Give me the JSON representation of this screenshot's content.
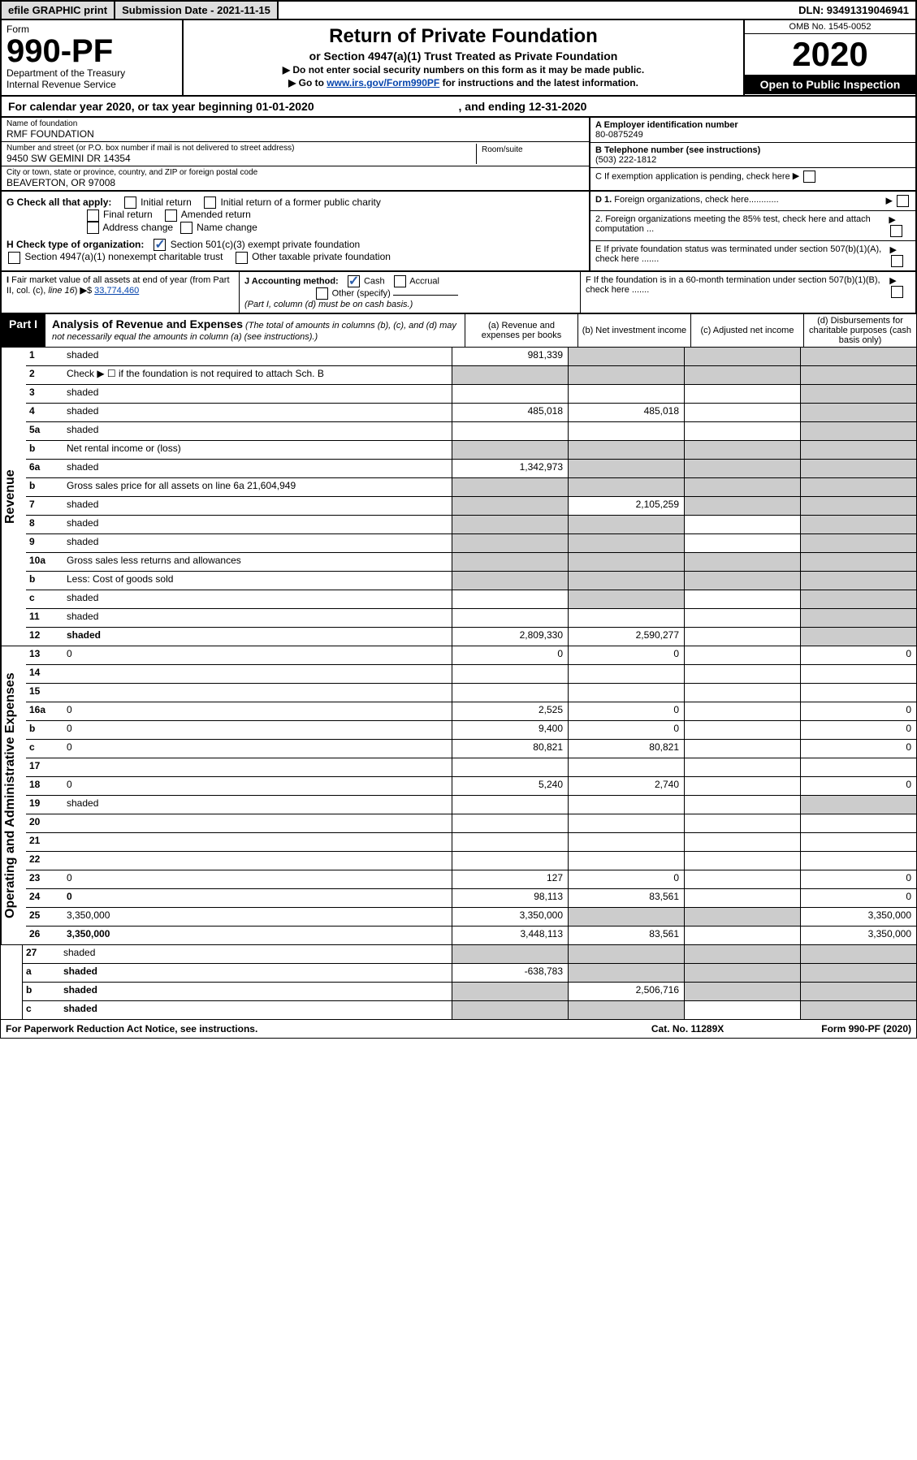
{
  "topbar": {
    "efile": "efile GRAPHIC print",
    "sub": "Submission Date - 2021-11-15",
    "dln": "DLN: 93491319046941"
  },
  "header": {
    "form_label": "Form",
    "form_num": "990-PF",
    "dept": "Department of the Treasury",
    "irs": "Internal Revenue Service",
    "title": "Return of Private Foundation",
    "sub1": "or Section 4947(a)(1) Trust Treated as Private Foundation",
    "sub2a": "▶ Do not enter social security numbers on this form as it may be made public.",
    "sub2b": "▶ Go to ",
    "sub2link": "www.irs.gov/Form990PF",
    "sub2c": " for instructions and the latest information.",
    "omb": "OMB No. 1545-0052",
    "year": "2020",
    "open": "Open to Public Inspection"
  },
  "calyear": {
    "text1": "For calendar year 2020, or tax year beginning 01-01-2020",
    "text2": ", and ending 12-31-2020"
  },
  "entity": {
    "name_label": "Name of foundation",
    "name": "RMF FOUNDATION",
    "addr_label": "Number and street (or P.O. box number if mail is not delivered to street address)",
    "addr": "9450 SW GEMINI DR 14354",
    "room_label": "Room/suite",
    "city_label": "City or town, state or province, country, and ZIP or foreign postal code",
    "city": "BEAVERTON, OR  97008",
    "a_label": "A Employer identification number",
    "a_val": "80-0875249",
    "b_label": "B Telephone number (see instructions)",
    "b_val": "(503) 222-1812",
    "c_label": "C If exemption application is pending, check here"
  },
  "checks": {
    "g_label": "G Check all that apply:",
    "g1": "Initial return",
    "g2": "Initial return of a former public charity",
    "g3": "Final return",
    "g4": "Amended return",
    "g5": "Address change",
    "g6": "Name change",
    "h_label": "H Check type of organization:",
    "h1": "Section 501(c)(3) exempt private foundation",
    "h2": "Section 4947(a)(1) nonexempt charitable trust",
    "h3": "Other taxable private foundation",
    "d1": "D 1. Foreign organizations, check here............",
    "d2": "2. Foreign organizations meeting the 85% test, check here and attach computation ...",
    "e": "E  If private foundation status was terminated under section 507(b)(1)(A), check here .......",
    "i": "I Fair market value of all assets at end of year (from Part II, col. (c), line 16) ▶$ ",
    "i_val": "33,774,460",
    "j": "J Accounting method:",
    "j1": "Cash",
    "j2": "Accrual",
    "j3": "Other (specify)",
    "j4": "(Part I, column (d) must be on cash basis.)",
    "f": "F  If the foundation is in a 60-month termination under section 507(b)(1)(B), check here ......."
  },
  "part1": {
    "label": "Part I",
    "title": "Analysis of Revenue and Expenses",
    "note": " (The total of amounts in columns (b), (c), and (d) may not necessarily equal the amounts in column (a) (see instructions).)",
    "col_a": "(a) Revenue and expenses per books",
    "col_b": "(b) Net investment income",
    "col_c": "(c) Adjusted net income",
    "col_d": "(d) Disbursements for charitable purposes (cash basis only)"
  },
  "sides": {
    "revenue": "Revenue",
    "oae": "Operating and Administrative Expenses"
  },
  "rows": [
    {
      "n": "1",
      "d": "shaded",
      "a": "981,339",
      "b": "shaded",
      "c": "shaded"
    },
    {
      "n": "2",
      "d": "Check ▶ ☐ if the foundation is not required to attach Sch. B",
      "merge": true
    },
    {
      "n": "3",
      "d": "shaded",
      "a": "",
      "b": "",
      "c": ""
    },
    {
      "n": "4",
      "d": "shaded",
      "a": "485,018",
      "b": "485,018",
      "c": ""
    },
    {
      "n": "5a",
      "d": "shaded",
      "a": "",
      "b": "",
      "c": ""
    },
    {
      "n": "b",
      "d": "Net rental income or (loss)",
      "merge": true
    },
    {
      "n": "6a",
      "d": "shaded",
      "a": "1,342,973",
      "b": "shaded",
      "c": "shaded"
    },
    {
      "n": "b",
      "d": "Gross sales price for all assets on line 6a         21,604,949",
      "merge": true
    },
    {
      "n": "7",
      "d": "shaded",
      "a": "shaded",
      "b": "2,105,259",
      "c": "shaded"
    },
    {
      "n": "8",
      "d": "shaded",
      "a": "shaded",
      "b": "shaded",
      "c": ""
    },
    {
      "n": "9",
      "d": "shaded",
      "a": "shaded",
      "b": "shaded",
      "c": ""
    },
    {
      "n": "10a",
      "d": "Gross sales less returns and allowances",
      "merge": true
    },
    {
      "n": "b",
      "d": "Less: Cost of goods sold",
      "merge": true
    },
    {
      "n": "c",
      "d": "shaded",
      "a": "",
      "b": "shaded",
      "c": ""
    },
    {
      "n": "11",
      "d": "shaded",
      "a": "",
      "b": "",
      "c": ""
    },
    {
      "n": "12",
      "d": "shaded",
      "bold": true,
      "a": "2,809,330",
      "b": "2,590,277",
      "c": ""
    }
  ],
  "rows2": [
    {
      "n": "13",
      "d": "0",
      "a": "0",
      "b": "0",
      "c": ""
    },
    {
      "n": "14",
      "d": "",
      "a": "",
      "b": "",
      "c": ""
    },
    {
      "n": "15",
      "d": "",
      "a": "",
      "b": "",
      "c": ""
    },
    {
      "n": "16a",
      "d": "0",
      "a": "2,525",
      "b": "0",
      "c": ""
    },
    {
      "n": "b",
      "d": "0",
      "a": "9,400",
      "b": "0",
      "c": ""
    },
    {
      "n": "c",
      "d": "0",
      "a": "80,821",
      "b": "80,821",
      "c": ""
    },
    {
      "n": "17",
      "d": "",
      "a": "",
      "b": "",
      "c": ""
    },
    {
      "n": "18",
      "d": "0",
      "a": "5,240",
      "b": "2,740",
      "c": ""
    },
    {
      "n": "19",
      "d": "shaded",
      "a": "",
      "b": "",
      "c": ""
    },
    {
      "n": "20",
      "d": "",
      "a": "",
      "b": "",
      "c": ""
    },
    {
      "n": "21",
      "d": "",
      "a": "",
      "b": "",
      "c": ""
    },
    {
      "n": "22",
      "d": "",
      "a": "",
      "b": "",
      "c": ""
    },
    {
      "n": "23",
      "d": "0",
      "a": "127",
      "b": "0",
      "c": ""
    },
    {
      "n": "24",
      "d": "0",
      "bold": true,
      "a": "98,113",
      "b": "83,561",
      "c": ""
    },
    {
      "n": "25",
      "d": "3,350,000",
      "a": "3,350,000",
      "b": "shaded",
      "c": "shaded"
    },
    {
      "n": "26",
      "d": "3,350,000",
      "bold": true,
      "a": "3,448,113",
      "b": "83,561",
      "c": ""
    }
  ],
  "rows3": [
    {
      "n": "27",
      "d": "shaded",
      "a": "shaded",
      "b": "shaded",
      "c": "shaded"
    },
    {
      "n": "a",
      "d": "shaded",
      "bold": true,
      "a": "-638,783",
      "b": "shaded",
      "c": "shaded"
    },
    {
      "n": "b",
      "d": "shaded",
      "bold": true,
      "a": "shaded",
      "b": "2,506,716",
      "c": "shaded"
    },
    {
      "n": "c",
      "d": "shaded",
      "bold": true,
      "a": "shaded",
      "b": "shaded",
      "c": ""
    }
  ],
  "footer": {
    "left": "For Paperwork Reduction Act Notice, see instructions.",
    "mid": "Cat. No. 11289X",
    "right": "Form 990-PF (2020)"
  }
}
